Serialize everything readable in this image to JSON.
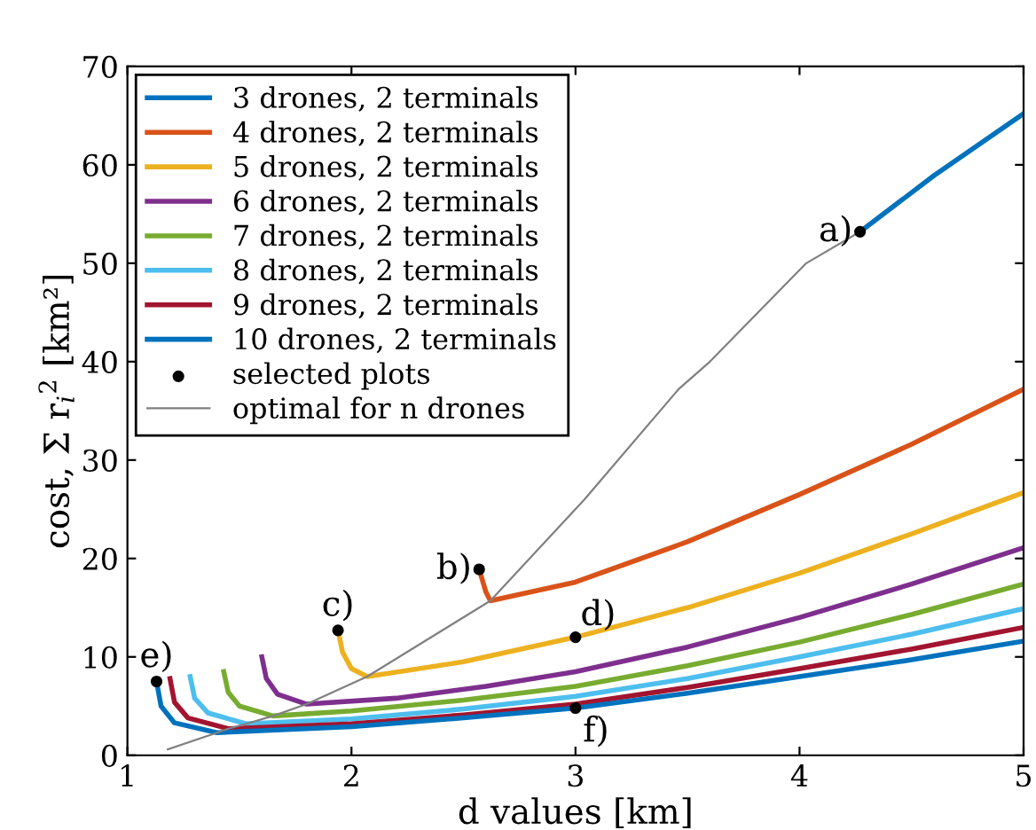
{
  "chart_data": {
    "type": "line",
    "xlabel": "d values [km]",
    "ylabel": "cost, Σ r$_{i}$$^{2}$ [km²]",
    "xlim": [
      1,
      5
    ],
    "ylim": [
      0,
      70
    ],
    "xticks": [
      1,
      2,
      3,
      4,
      5
    ],
    "yticks": [
      0,
      10,
      20,
      30,
      40,
      50,
      60,
      70
    ],
    "grid": false,
    "legend": "top left",
    "line_style": "solid",
    "series": [
      {
        "name": "3 drones, 2 terminals",
        "color": "#0072bd",
        "x": [
          4.27,
          4.6,
          5
        ],
        "values": [
          53.2,
          58.9,
          65.2
        ]
      },
      {
        "name": "4 drones, 2 terminals",
        "color": "#d95319",
        "x": [
          2.57,
          2.6,
          2.62,
          3,
          3.5,
          4,
          4.5,
          5
        ],
        "values": [
          18.9,
          16.6,
          15.7,
          17.6,
          21.7,
          26.5,
          31.6,
          37.2
        ]
      },
      {
        "name": "5 drones, 2 terminals",
        "color": "#edb120",
        "x": [
          1.94,
          1.96,
          2.0,
          2.07,
          2.5,
          3,
          3.5,
          4,
          4.5,
          5
        ],
        "values": [
          12.7,
          10.5,
          8.8,
          8.0,
          9.5,
          12.0,
          15.0,
          18.5,
          22.5,
          26.7
        ]
      },
      {
        "name": "6 drones, 2 terminals",
        "color": "#7e2f8e",
        "x": [
          1.6,
          1.62,
          1.67,
          1.8,
          2.2,
          2.6,
          3,
          3.5,
          4,
          4.5,
          5
        ],
        "values": [
          10.0,
          7.8,
          6.2,
          5.2,
          5.8,
          7.0,
          8.5,
          11.0,
          14.0,
          17.4,
          21.1
        ]
      },
      {
        "name": "7 drones, 2 terminals",
        "color": "#77ac30",
        "x": [
          1.43,
          1.45,
          1.5,
          1.65,
          2,
          2.5,
          3,
          3.5,
          4,
          4.5,
          5
        ],
        "values": [
          8.5,
          6.4,
          5.0,
          4.0,
          4.5,
          5.6,
          7.0,
          9.1,
          11.5,
          14.3,
          17.4
        ]
      },
      {
        "name": "8 drones, 2 terminals",
        "color": "#4dbeee",
        "x": [
          1.28,
          1.3,
          1.36,
          1.53,
          2,
          2.5,
          3,
          3.5,
          4,
          4.5,
          5
        ],
        "values": [
          8.0,
          5.8,
          4.3,
          3.2,
          3.7,
          4.7,
          6.0,
          7.8,
          10.0,
          12.3,
          14.9
        ]
      },
      {
        "name": "9 drones, 2 terminals",
        "color": "#a2142f",
        "x": [
          1.19,
          1.21,
          1.27,
          1.45,
          2,
          2.5,
          3,
          3.5,
          4,
          4.5,
          5
        ],
        "values": [
          7.8,
          5.4,
          3.8,
          2.7,
          3.2,
          4.1,
          5.2,
          6.9,
          8.8,
          10.8,
          13.0
        ]
      },
      {
        "name": "10 drones, 2 terminals",
        "color": "#0072bd",
        "x": [
          1.13,
          1.15,
          1.21,
          1.4,
          2,
          2.5,
          3,
          3.5,
          4,
          4.5,
          5
        ],
        "values": [
          7.5,
          5.0,
          3.3,
          2.3,
          2.9,
          3.8,
          4.8,
          6.3,
          8.0,
          9.7,
          11.6
        ]
      },
      {
        "name": "selected plots",
        "type": "scatter",
        "marker": "circle",
        "color": "#000000",
        "x": [
          4.27,
          2.57,
          1.94,
          3,
          1.13,
          3
        ],
        "values": [
          53.2,
          18.9,
          12.7,
          12.0,
          7.5,
          4.8
        ]
      },
      {
        "name": "optimal for n drones",
        "color": "#808080",
        "x": [
          1.18,
          1.4,
          1.45,
          1.53,
          1.65,
          1.8,
          2.07,
          2.62,
          3.04,
          3.46,
          3.6,
          4.03,
          4.27
        ],
        "values": [
          0.6,
          2.3,
          2.7,
          3.2,
          4.0,
          5.2,
          8.0,
          15.7,
          26.0,
          37.2,
          40.0,
          50.0,
          53.2
        ]
      }
    ],
    "annotations": [
      {
        "text": "a)",
        "x": 4.27,
        "y": 53.2
      },
      {
        "text": "b)",
        "x": 2.57,
        "y": 18.9
      },
      {
        "text": "c)",
        "x": 1.94,
        "y": 12.7
      },
      {
        "text": "d)",
        "x": 3,
        "y": 12.0
      },
      {
        "text": "e)",
        "x": 1.13,
        "y": 7.5
      },
      {
        "text": "f)",
        "x": 3,
        "y": 4.8
      }
    ]
  }
}
